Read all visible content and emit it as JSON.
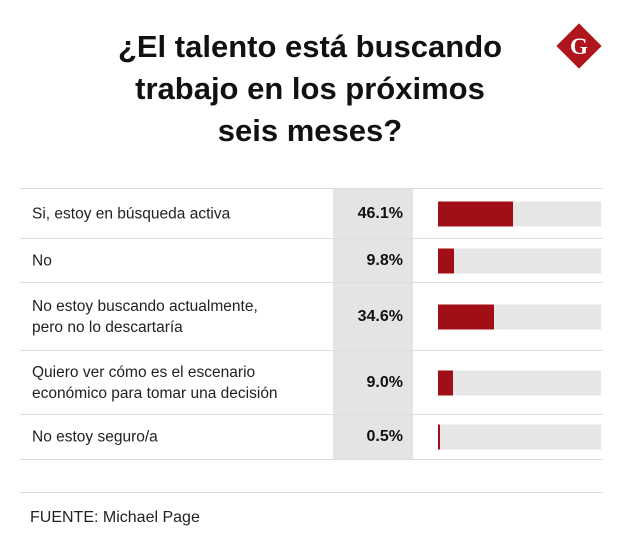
{
  "title_lines": [
    "¿El talento está buscando",
    "trabajo en los próximos",
    "seis meses?"
  ],
  "logo": {
    "letter": "G",
    "color": "#b0141c"
  },
  "chart_data": {
    "type": "bar",
    "title": "¿El talento está buscando trabajo en los próximos seis meses?",
    "categories": [
      "Si, estoy en búsqueda activa",
      "No",
      "No estoy buscando actualmente, pero no lo descartaría",
      "Quiero ver cómo es el escenario económico para tomar una decisión",
      "No estoy seguro/a"
    ],
    "category_lines": [
      [
        "Si, estoy en búsqueda activa"
      ],
      [
        "No"
      ],
      [
        "No estoy buscando actualmente,",
        "pero no lo descartaría"
      ],
      [
        "Quiero ver cómo es el escenario",
        "económico para tomar una decisión"
      ],
      [
        "No estoy seguro/a"
      ]
    ],
    "values": [
      46.1,
      9.8,
      34.6,
      9.0,
      0.5
    ],
    "value_labels": [
      "46.1%",
      "9.8%",
      "34.6%",
      "9.0%",
      "0.5%"
    ],
    "ylim": [
      0,
      100
    ],
    "bar_color": "#a10f16",
    "track_color": "#e6e6e6"
  },
  "source": "FUENTE: Michael Page"
}
